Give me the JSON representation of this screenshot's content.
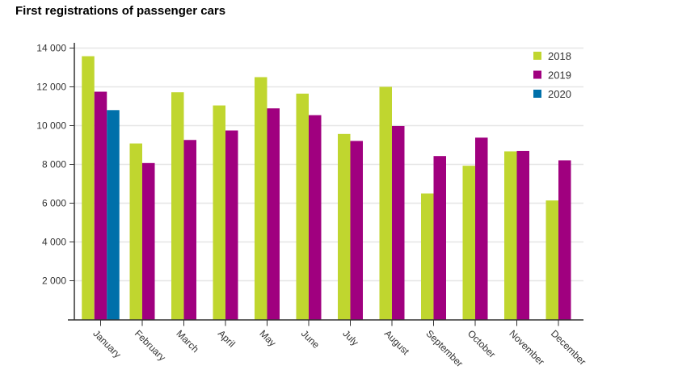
{
  "chart_data": {
    "type": "bar",
    "title": "First registrations of passenger cars",
    "xlabel": "",
    "ylabel": "",
    "categories": [
      "January",
      "February",
      "March",
      "April",
      "May",
      "June",
      "July",
      "August",
      "September",
      "October",
      "November",
      "December"
    ],
    "series": [
      {
        "name": "2018",
        "color": "#c0d62f",
        "values": [
          13580,
          9080,
          11720,
          11040,
          12500,
          11650,
          9570,
          12000,
          6500,
          7930,
          8670,
          6140
        ]
      },
      {
        "name": "2019",
        "color": "#a0007f",
        "values": [
          11750,
          8070,
          9260,
          9750,
          10890,
          10540,
          9210,
          9980,
          8430,
          9380,
          8690,
          8210
        ]
      },
      {
        "name": "2020",
        "color": "#0070aa",
        "values": [
          10800,
          null,
          null,
          null,
          null,
          null,
          null,
          null,
          null,
          null,
          null,
          null
        ]
      }
    ],
    "ylim": [
      0,
      14000
    ],
    "yticks": [
      2000,
      4000,
      6000,
      8000,
      10000,
      12000,
      14000
    ],
    "ytick_labels": [
      "2 000",
      "4 000",
      "6 000",
      "8 000",
      "10 000",
      "12 000",
      "14 000"
    ],
    "grid": true,
    "legend_position": "top-right"
  }
}
